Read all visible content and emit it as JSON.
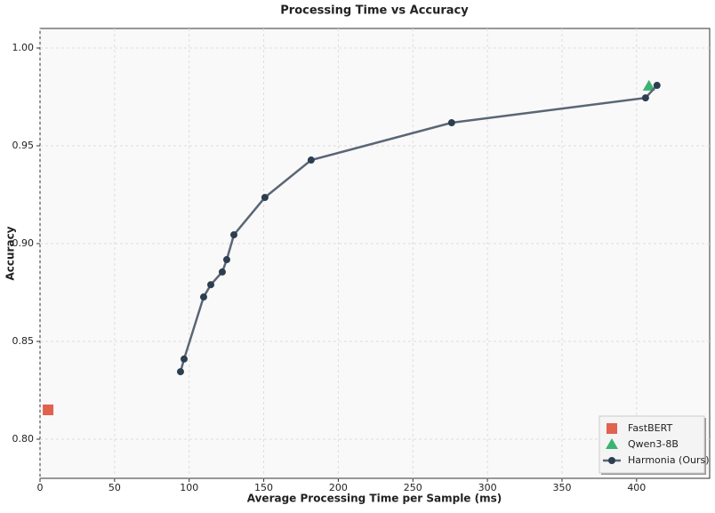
{
  "chart_data": {
    "type": "scatter-line",
    "title": "Processing Time vs Accuracy",
    "x_label": "Average Processing Time per Sample (ms)",
    "y_label": "Accuracy",
    "xlim": [
      0,
      449
    ],
    "ylim": [
      0.78,
      1.01
    ],
    "xticks": [
      0,
      50,
      100,
      150,
      200,
      250,
      300,
      350,
      400
    ],
    "yticks": [
      {
        "value": 0.8,
        "label": "0.80"
      },
      {
        "value": 0.85,
        "label": "0.85"
      },
      {
        "value": 0.9,
        "label": "0.90"
      },
      {
        "value": 0.95,
        "label": "0.95"
      },
      {
        "value": 1.0,
        "label": "1.00"
      }
    ],
    "grid": true,
    "legend": "lower right",
    "series": [
      {
        "name": "FastBERT",
        "color": "#e2614f",
        "marker": "square",
        "x": [
          5.4
        ],
        "values": [
          0.815
        ]
      },
      {
        "name": "Qwen3-8B",
        "color": "#3cb371",
        "marker": "triangle",
        "x": [
          408.3
        ],
        "values": [
          0.9805
        ]
      },
      {
        "name": "Harmonia (Ours)",
        "color": "#5a6676",
        "marker": "line",
        "x": [
          94.2,
          96.6,
          109.7,
          114.5,
          122.2,
          125.2,
          130.0,
          150.8,
          181.8,
          276.0,
          406.0,
          413.7
        ],
        "values": [
          0.8345,
          0.841,
          0.8727,
          0.879,
          0.8855,
          0.8918,
          0.9045,
          0.9236,
          0.9427,
          0.9618,
          0.9745,
          0.9809
        ]
      }
    ]
  }
}
